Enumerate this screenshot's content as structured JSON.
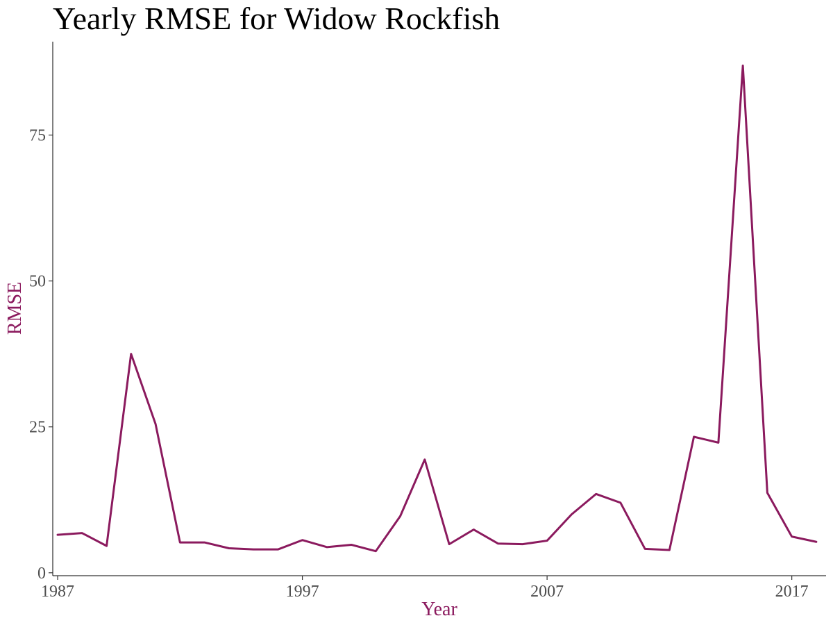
{
  "chart_data": {
    "type": "line",
    "title": "Yearly RMSE for Widow Rockfish",
    "xlabel": "Year",
    "ylabel": "RMSE",
    "xlim": [
      1986.8,
      2018.4
    ],
    "ylim": [
      -0.5,
      91
    ],
    "x_ticks": [
      1987,
      1997,
      2007,
      2017
    ],
    "y_ticks": [
      0,
      25,
      50,
      75
    ],
    "grid": false,
    "colors": {
      "line": "#8B1A5E",
      "axis_title": "#8B1A5E"
    },
    "series": [
      {
        "x": [
          1987,
          1988,
          1989,
          1990,
          1991,
          1992,
          1993,
          1994,
          1995,
          1996,
          1997,
          1998,
          1999,
          2000,
          2001,
          2002,
          2003,
          2004,
          2005,
          2006,
          2007,
          2008,
          2009,
          2010,
          2011,
          2012,
          2013,
          2014,
          2015,
          2016,
          2017,
          2018
        ],
        "values": [
          6.5,
          6.8,
          4.6,
          37.5,
          25.5,
          5.2,
          5.2,
          4.2,
          4.0,
          4.0,
          5.6,
          4.4,
          4.8,
          3.7,
          9.7,
          19.4,
          4.9,
          7.4,
          5.0,
          4.9,
          5.5,
          10.0,
          13.5,
          12.0,
          4.1,
          3.9,
          23.3,
          22.3,
          86.9,
          13.7,
          6.2,
          5.3
        ]
      }
    ]
  }
}
